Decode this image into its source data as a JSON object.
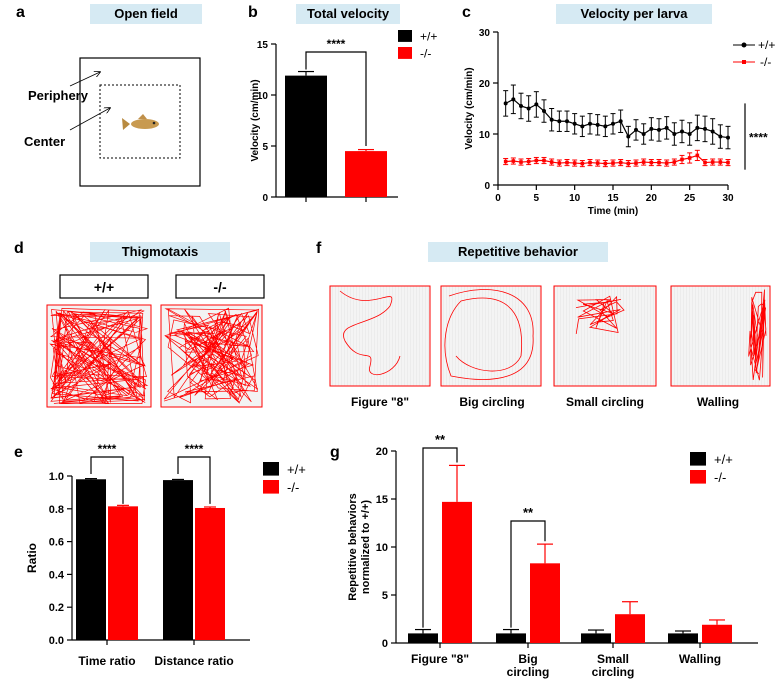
{
  "panels": {
    "a": {
      "letter": "a",
      "title": "Open field",
      "periphery_label": "Periphery",
      "center_label": "Center"
    },
    "b": {
      "letter": "b",
      "title": "Total velocity"
    },
    "c": {
      "letter": "c",
      "title": "Velocity per larva"
    },
    "d": {
      "letter": "d",
      "title": "Thigmotaxis",
      "genotype_wt": "+/+",
      "genotype_ko": "-/-"
    },
    "e": {
      "letter": "e"
    },
    "f": {
      "letter": "f",
      "title": "Repetitive behavior",
      "examples": [
        "Figure \"8\"",
        "Big circling",
        "Small circling",
        "Walling"
      ]
    },
    "g": {
      "letter": "g"
    }
  },
  "colors": {
    "wt": "#000000",
    "ko": "#ff0000",
    "title_bg": "#d6eaf3"
  },
  "chart_data": [
    {
      "id": "b",
      "type": "bar",
      "ylabel": "Velocity (cm/min)",
      "ylim": [
        0,
        15
      ],
      "yticks": [
        0,
        5,
        10,
        15
      ],
      "series": [
        {
          "name": "+/+",
          "value": 11.9,
          "error": 0.4
        },
        {
          "name": "-/-",
          "value": 4.5,
          "error": 0.15
        }
      ],
      "significance": "****",
      "legend": [
        "+/+",
        "-/-"
      ],
      "legend_position": "top-right"
    },
    {
      "id": "c",
      "type": "line",
      "xlabel": "Time (min)",
      "ylabel": "Velocity (cm/min)",
      "xlim": [
        0,
        30
      ],
      "ylim": [
        0,
        30
      ],
      "xticks": [
        0,
        5,
        10,
        15,
        20,
        25,
        30
      ],
      "yticks": [
        0,
        10,
        20,
        30
      ],
      "x": [
        1,
        2,
        3,
        4,
        5,
        6,
        7,
        8,
        9,
        10,
        11,
        12,
        13,
        14,
        15,
        16,
        17,
        18,
        19,
        20,
        21,
        22,
        23,
        24,
        25,
        26,
        27,
        28,
        29,
        30
      ],
      "series": [
        {
          "name": "+/+",
          "values": [
            16.0,
            16.8,
            15.5,
            15.0,
            15.8,
            14.5,
            12.8,
            12.5,
            12.5,
            12.0,
            11.5,
            12.0,
            11.8,
            11.5,
            12.0,
            12.5,
            9.5,
            10.8,
            10.0,
            11.0,
            10.8,
            11.2,
            10.0,
            10.5,
            10.0,
            11.2,
            11.0,
            10.5,
            9.5,
            9.3
          ],
          "errors": [
            2.5,
            2.8,
            2.5,
            2.5,
            2.5,
            2.2,
            2.2,
            2.0,
            2.0,
            2.0,
            2.0,
            2.0,
            2.0,
            2.0,
            2.0,
            2.2,
            2.0,
            2.0,
            2.0,
            2.2,
            2.2,
            2.2,
            2.2,
            2.2,
            2.2,
            2.5,
            2.5,
            2.5,
            2.3,
            2.2
          ]
        },
        {
          "name": "-/-",
          "values": [
            4.6,
            4.7,
            4.5,
            4.6,
            4.8,
            4.8,
            4.5,
            4.3,
            4.4,
            4.3,
            4.2,
            4.4,
            4.3,
            4.2,
            4.3,
            4.4,
            4.2,
            4.3,
            4.5,
            4.4,
            4.4,
            4.3,
            4.5,
            5.0,
            5.3,
            5.8,
            4.4,
            4.5,
            4.5,
            4.4
          ],
          "errors": [
            0.6,
            0.6,
            0.6,
            0.6,
            0.6,
            0.6,
            0.6,
            0.6,
            0.6,
            0.6,
            0.6,
            0.6,
            0.6,
            0.6,
            0.6,
            0.6,
            0.6,
            0.6,
            0.6,
            0.6,
            0.6,
            0.6,
            0.6,
            0.8,
            1.0,
            1.0,
            0.6,
            0.6,
            0.6,
            0.6
          ]
        }
      ],
      "significance": "****",
      "legend": [
        "+/+",
        "-/-"
      ],
      "legend_position": "top-right"
    },
    {
      "id": "e",
      "type": "bar",
      "ylabel": "Ratio",
      "ylim": [
        0,
        1.0
      ],
      "yticks": [
        0.0,
        0.2,
        0.4,
        0.6,
        0.8,
        1.0
      ],
      "categories": [
        "Time ratio",
        "Distance ratio"
      ],
      "series": [
        {
          "name": "+/+",
          "values": [
            0.98,
            0.975
          ],
          "errors": [
            0.004,
            0.004
          ]
        },
        {
          "name": "-/-",
          "values": [
            0.815,
            0.805
          ],
          "errors": [
            0.006,
            0.006
          ]
        }
      ],
      "significance": [
        "****",
        "****"
      ],
      "legend_position": "top-right"
    },
    {
      "id": "g",
      "type": "bar",
      "ylabel": "Repetitive behaviors normalized to +/+)",
      "ylim": [
        0,
        20
      ],
      "yticks": [
        0,
        5,
        10,
        15,
        20
      ],
      "categories": [
        "Figure \"8\"",
        "Big circling",
        "Small circling",
        "Walling"
      ],
      "series": [
        {
          "name": "+/+",
          "values": [
            1.0,
            1.0,
            1.0,
            1.0
          ],
          "errors": [
            0.4,
            0.4,
            0.35,
            0.25
          ]
        },
        {
          "name": "-/-",
          "values": [
            14.7,
            8.3,
            3.0,
            1.9
          ],
          "errors": [
            3.8,
            2.0,
            1.3,
            0.5
          ]
        }
      ],
      "significance": {
        "Figure \"8\"": "**",
        "Big circling": "**"
      },
      "legend_position": "top-right"
    }
  ]
}
